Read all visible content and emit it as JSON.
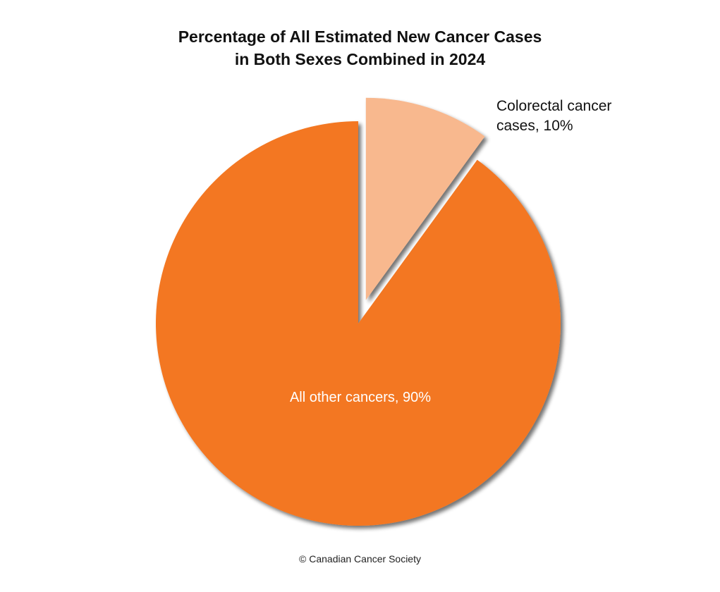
{
  "title": {
    "line1": "Percentage of All Estimated New Cancer Cases",
    "line2": "in Both Sexes Combined in 2024"
  },
  "labels": {
    "colorectal_line1": "Colorectal cancer",
    "colorectal_line2": "cases, 10%",
    "other": "All other cancers, 90%"
  },
  "credit": "© Canadian Cancer Society",
  "colors": {
    "all_other": "#F37721",
    "colorectal": "#F8B88E",
    "background": "#FFFFFF"
  },
  "chart_data": {
    "type": "pie",
    "title": "Percentage of All Estimated New Cancer Cases in Both Sexes Combined in 2024",
    "categories": [
      "Colorectal cancer cases",
      "All other cancers"
    ],
    "values": [
      10,
      90
    ],
    "unit": "%",
    "colors": [
      "#F8B88E",
      "#F37721"
    ],
    "exploded": [
      "Colorectal cancer cases"
    ],
    "start_angle_deg": 0,
    "direction": "clockwise",
    "legend": "none (direct labels)",
    "source": "© Canadian Cancer Society"
  }
}
